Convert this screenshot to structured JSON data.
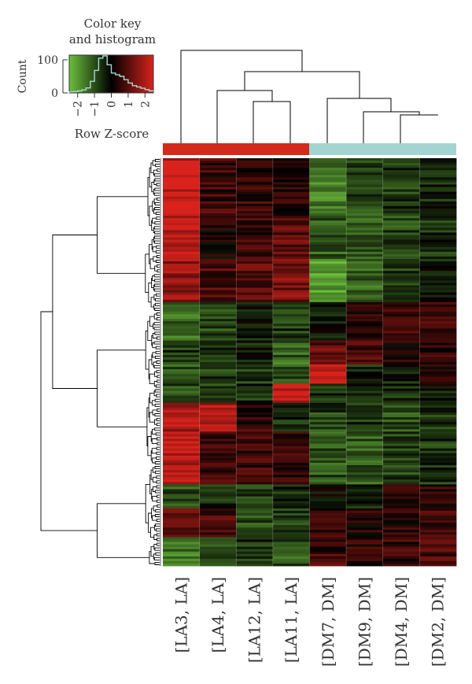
{
  "chart_data": {
    "type": "heatmap",
    "color_key": {
      "title_line1": "Color key",
      "title_line2": "and histogram",
      "ylabel": "Count",
      "xlabel": "Row Z-score",
      "x_ticks": [
        "−2",
        "−1",
        "0",
        "1",
        "2"
      ],
      "x_tick_values": [
        -2,
        -1,
        0,
        1,
        2
      ],
      "y_ticks": [
        "0",
        "100"
      ],
      "y_tick_values": [
        0,
        100
      ],
      "xlim": [
        -2.5,
        2.5
      ],
      "ylim": [
        0,
        130
      ],
      "colors": {
        "low": "#6cbf3c",
        "mid": "#000000",
        "high": "#d9221c"
      },
      "histogram": {
        "bin_start": -2.5,
        "bin_width": 0.25,
        "counts": [
          3,
          4,
          6,
          9,
          15,
          35,
          68,
          105,
          112,
          85,
          60,
          55,
          50,
          40,
          30,
          22,
          18,
          14,
          10,
          6
        ],
        "line_color": "#a8d8d4"
      }
    },
    "columns": [
      "[LA3, LA]",
      "[LA4, LA]",
      "[LA12, LA]",
      "[LA11, LA]",
      "[DM7, DM]",
      "[DM9, DM]",
      "[DM4, DM]",
      "[DM2, DM]"
    ],
    "column_groups": [
      "LA",
      "LA",
      "LA",
      "LA",
      "DM",
      "DM",
      "DM",
      "DM"
    ],
    "group_colors": {
      "LA": "#d32a1c",
      "DM": "#a4d4d2"
    },
    "column_dendrogram": {
      "root_height": 1.0,
      "merges": [
        {
          "left": "[LA12, LA]",
          "right": "[LA11, LA]",
          "height": 0.25
        },
        {
          "left": "[LA4, LA]",
          "right": "LA12+LA11",
          "height": 0.38
        },
        {
          "left": "[DM4, DM]",
          "right": "[DM2, DM]",
          "height": 0.12
        },
        {
          "left": "[DM9, DM]",
          "right": "DM4+DM2",
          "height": 0.2
        },
        {
          "left": "[DM7, DM]",
          "right": "DM9+DM4+DM2",
          "height": 0.41
        },
        {
          "left": "LA4+LA12+LA11",
          "right": "DM7+DM9+DM4+DM2",
          "height": 0.62
        },
        {
          "left": "[LA3, LA]",
          "right": "all others",
          "height": 1.0
        }
      ]
    },
    "row_count": 170,
    "row_profiles": [
      {
        "rows": 24,
        "values": [
          2.0,
          0.6,
          0.5,
          0.3,
          -1.4,
          -0.8,
          -0.6,
          -0.4
        ]
      },
      {
        "rows": 18,
        "values": [
          1.8,
          0.2,
          0.6,
          0.9,
          -1.0,
          -0.9,
          -0.8,
          -0.5
        ]
      },
      {
        "rows": 18,
        "values": [
          1.5,
          0.8,
          0.9,
          1.2,
          -1.9,
          -1.1,
          -0.7,
          -0.3
        ]
      },
      {
        "rows": 16,
        "values": [
          -1.2,
          -0.8,
          -0.3,
          -0.6,
          -0.2,
          0.4,
          0.5,
          0.6
        ]
      },
      {
        "rows": 10,
        "values": [
          -0.6,
          -0.5,
          -0.3,
          -1.1,
          0.9,
          0.7,
          0.2,
          0.5
        ]
      },
      {
        "rows": 8,
        "values": [
          -0.9,
          -0.7,
          -0.6,
          -0.9,
          2.1,
          -0.4,
          -0.3,
          0.4
        ]
      },
      {
        "rows": 8,
        "values": [
          -0.8,
          -0.6,
          -0.5,
          2.0,
          -0.5,
          -0.3,
          -0.4,
          -0.2
        ]
      },
      {
        "rows": 12,
        "values": [
          1.7,
          1.8,
          0.5,
          -0.4,
          -0.7,
          -0.6,
          -0.8,
          -0.5
        ]
      },
      {
        "rows": 22,
        "values": [
          1.9,
          0.7,
          0.6,
          0.5,
          -0.9,
          -1.0,
          -0.7,
          -0.6
        ]
      },
      {
        "rows": 10,
        "values": [
          -0.9,
          -0.5,
          -0.6,
          -0.4,
          -0.2,
          -0.3,
          0.3,
          0.4
        ]
      },
      {
        "rows": 12,
        "values": [
          0.8,
          0.6,
          -0.8,
          -0.7,
          0.5,
          0.3,
          0.4,
          0.6
        ]
      },
      {
        "rows": 12,
        "values": [
          -1.3,
          -0.7,
          -0.5,
          -0.9,
          0.6,
          0.4,
          0.5,
          0.7
        ]
      }
    ],
    "row_dendrogram": {
      "leaves": 170
    }
  }
}
